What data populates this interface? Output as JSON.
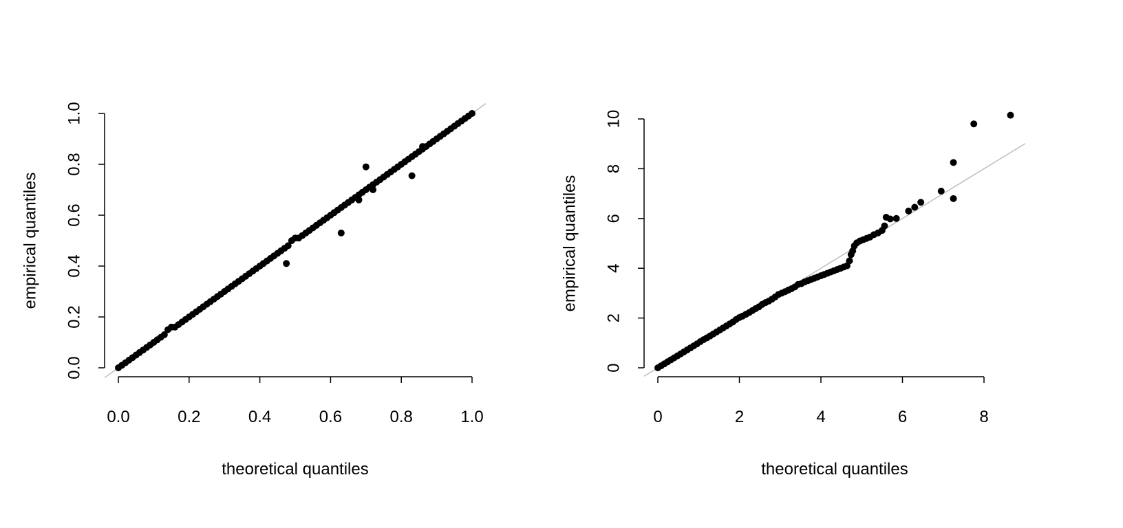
{
  "chart_data": [
    {
      "type": "scatter",
      "xlabel": "theoretical quantiles",
      "ylabel": "empirical quantiles",
      "xlim": [
        0,
        1
      ],
      "ylim": [
        0,
        1
      ],
      "xticks": [
        "0.0",
        "0.2",
        "0.4",
        "0.6",
        "0.8",
        "1.0"
      ],
      "yticks": [
        "0.0",
        "0.2",
        "0.4",
        "0.6",
        "0.8",
        "1.0"
      ],
      "reference_line": {
        "type": "y=x",
        "color": "#bebebe"
      },
      "point_color": "#000000",
      "points": [
        [
          0,
          0
        ],
        [
          0.01,
          0.01
        ],
        [
          0.02,
          0.02
        ],
        [
          0.03,
          0.03
        ],
        [
          0.04,
          0.04
        ],
        [
          0.05,
          0.05
        ],
        [
          0.06,
          0.06
        ],
        [
          0.07,
          0.07
        ],
        [
          0.08,
          0.08
        ],
        [
          0.09,
          0.09
        ],
        [
          0.1,
          0.1
        ],
        [
          0.11,
          0.11
        ],
        [
          0.12,
          0.12
        ],
        [
          0.13,
          0.13
        ],
        [
          0.14,
          0.15
        ],
        [
          0.15,
          0.16
        ],
        [
          0.16,
          0.16
        ],
        [
          0.17,
          0.17
        ],
        [
          0.18,
          0.18
        ],
        [
          0.19,
          0.19
        ],
        [
          0.2,
          0.2
        ],
        [
          0.21,
          0.21
        ],
        [
          0.22,
          0.22
        ],
        [
          0.23,
          0.23
        ],
        [
          0.24,
          0.24
        ],
        [
          0.25,
          0.25
        ],
        [
          0.26,
          0.26
        ],
        [
          0.27,
          0.27
        ],
        [
          0.28,
          0.28
        ],
        [
          0.29,
          0.29
        ],
        [
          0.3,
          0.3
        ],
        [
          0.31,
          0.31
        ],
        [
          0.32,
          0.32
        ],
        [
          0.33,
          0.33
        ],
        [
          0.34,
          0.34
        ],
        [
          0.35,
          0.35
        ],
        [
          0.36,
          0.36
        ],
        [
          0.37,
          0.37
        ],
        [
          0.38,
          0.38
        ],
        [
          0.39,
          0.39
        ],
        [
          0.4,
          0.4
        ],
        [
          0.41,
          0.41
        ],
        [
          0.42,
          0.42
        ],
        [
          0.43,
          0.43
        ],
        [
          0.44,
          0.44
        ],
        [
          0.45,
          0.45
        ],
        [
          0.46,
          0.46
        ],
        [
          0.47,
          0.47
        ],
        [
          0.48,
          0.48
        ],
        [
          0.49,
          0.5
        ],
        [
          0.5,
          0.51
        ],
        [
          0.51,
          0.51
        ],
        [
          0.52,
          0.52
        ],
        [
          0.53,
          0.53
        ],
        [
          0.54,
          0.54
        ],
        [
          0.55,
          0.55
        ],
        [
          0.56,
          0.56
        ],
        [
          0.57,
          0.57
        ],
        [
          0.58,
          0.58
        ],
        [
          0.59,
          0.59
        ],
        [
          0.6,
          0.6
        ],
        [
          0.61,
          0.61
        ],
        [
          0.62,
          0.62
        ],
        [
          0.63,
          0.63
        ],
        [
          0.64,
          0.64
        ],
        [
          0.65,
          0.65
        ],
        [
          0.66,
          0.66
        ],
        [
          0.67,
          0.67
        ],
        [
          0.68,
          0.68
        ],
        [
          0.69,
          0.69
        ],
        [
          0.7,
          0.7
        ],
        [
          0.71,
          0.71
        ],
        [
          0.72,
          0.72
        ],
        [
          0.73,
          0.73
        ],
        [
          0.74,
          0.74
        ],
        [
          0.75,
          0.75
        ],
        [
          0.76,
          0.76
        ],
        [
          0.77,
          0.77
        ],
        [
          0.78,
          0.78
        ],
        [
          0.79,
          0.79
        ],
        [
          0.8,
          0.8
        ],
        [
          0.81,
          0.81
        ],
        [
          0.82,
          0.82
        ],
        [
          0.83,
          0.83
        ],
        [
          0.84,
          0.84
        ],
        [
          0.85,
          0.85
        ],
        [
          0.86,
          0.86
        ],
        [
          0.87,
          0.87
        ],
        [
          0.88,
          0.88
        ],
        [
          0.89,
          0.89
        ],
        [
          0.9,
          0.9
        ],
        [
          0.91,
          0.91
        ],
        [
          0.92,
          0.92
        ],
        [
          0.93,
          0.93
        ],
        [
          0.94,
          0.94
        ],
        [
          0.95,
          0.95
        ],
        [
          0.96,
          0.96
        ],
        [
          0.97,
          0.97
        ],
        [
          0.98,
          0.98
        ],
        [
          0.99,
          0.99
        ],
        [
          1.0,
          1.0
        ],
        [
          0.475,
          0.41
        ],
        [
          0.63,
          0.53
        ],
        [
          0.7,
          0.79
        ],
        [
          0.72,
          0.7
        ],
        [
          0.83,
          0.755
        ],
        [
          0.68,
          0.66
        ],
        [
          0.86,
          0.87
        ]
      ]
    },
    {
      "type": "scatter",
      "xlabel": "theoretical quantiles",
      "ylabel": "empirical quantiles",
      "xlim": [
        0,
        9
      ],
      "ylim": [
        0,
        10.5
      ],
      "xticks": [
        "0",
        "2",
        "4",
        "6",
        "8"
      ],
      "yticks": [
        "0",
        "2",
        "4",
        "6",
        "8",
        "10"
      ],
      "reference_line": {
        "type": "y=x",
        "color": "#bebebe"
      },
      "point_color": "#000000",
      "points": [
        [
          0,
          0
        ],
        [
          0.08,
          0.08
        ],
        [
          0.16,
          0.16
        ],
        [
          0.24,
          0.24
        ],
        [
          0.32,
          0.32
        ],
        [
          0.4,
          0.4
        ],
        [
          0.48,
          0.48
        ],
        [
          0.56,
          0.56
        ],
        [
          0.64,
          0.64
        ],
        [
          0.72,
          0.72
        ],
        [
          0.8,
          0.8
        ],
        [
          0.88,
          0.88
        ],
        [
          0.96,
          0.96
        ],
        [
          1.04,
          1.05
        ],
        [
          1.12,
          1.13
        ],
        [
          1.2,
          1.2
        ],
        [
          1.28,
          1.28
        ],
        [
          1.36,
          1.36
        ],
        [
          1.44,
          1.44
        ],
        [
          1.52,
          1.52
        ],
        [
          1.6,
          1.6
        ],
        [
          1.68,
          1.68
        ],
        [
          1.76,
          1.76
        ],
        [
          1.84,
          1.84
        ],
        [
          1.92,
          1.94
        ],
        [
          2.0,
          2.02
        ],
        [
          2.08,
          2.08
        ],
        [
          2.16,
          2.15
        ],
        [
          2.24,
          2.22
        ],
        [
          2.32,
          2.3
        ],
        [
          2.4,
          2.38
        ],
        [
          2.48,
          2.45
        ],
        [
          2.56,
          2.55
        ],
        [
          2.64,
          2.62
        ],
        [
          2.72,
          2.68
        ],
        [
          2.8,
          2.76
        ],
        [
          2.88,
          2.85
        ],
        [
          2.96,
          2.95
        ],
        [
          3.04,
          3.0
        ],
        [
          3.12,
          3.06
        ],
        [
          3.2,
          3.12
        ],
        [
          3.28,
          3.18
        ],
        [
          3.36,
          3.25
        ],
        [
          3.44,
          3.35
        ],
        [
          3.52,
          3.38
        ],
        [
          3.6,
          3.45
        ],
        [
          3.68,
          3.5
        ],
        [
          3.76,
          3.55
        ],
        [
          3.84,
          3.6
        ],
        [
          3.92,
          3.65
        ],
        [
          4.0,
          3.7
        ],
        [
          4.08,
          3.75
        ],
        [
          4.16,
          3.8
        ],
        [
          4.24,
          3.85
        ],
        [
          4.32,
          3.9
        ],
        [
          4.4,
          3.95
        ],
        [
          4.48,
          4.0
        ],
        [
          4.56,
          4.05
        ],
        [
          4.64,
          4.1
        ],
        [
          4.7,
          4.3
        ],
        [
          4.74,
          4.55
        ],
        [
          4.78,
          4.7
        ],
        [
          4.82,
          4.9
        ],
        [
          4.88,
          5.02
        ],
        [
          4.96,
          5.1
        ],
        [
          5.04,
          5.15
        ],
        [
          5.12,
          5.2
        ],
        [
          5.2,
          5.25
        ],
        [
          5.3,
          5.35
        ],
        [
          5.4,
          5.42
        ],
        [
          5.5,
          5.52
        ],
        [
          5.56,
          5.7
        ],
        [
          5.6,
          6.05
        ],
        [
          5.7,
          5.98
        ],
        [
          5.85,
          6.0
        ],
        [
          6.15,
          6.3
        ],
        [
          6.3,
          6.45
        ],
        [
          6.45,
          6.65
        ],
        [
          6.95,
          7.1
        ],
        [
          7.25,
          6.8
        ],
        [
          7.25,
          8.25
        ],
        [
          7.75,
          9.8
        ],
        [
          8.65,
          10.15
        ]
      ]
    }
  ]
}
